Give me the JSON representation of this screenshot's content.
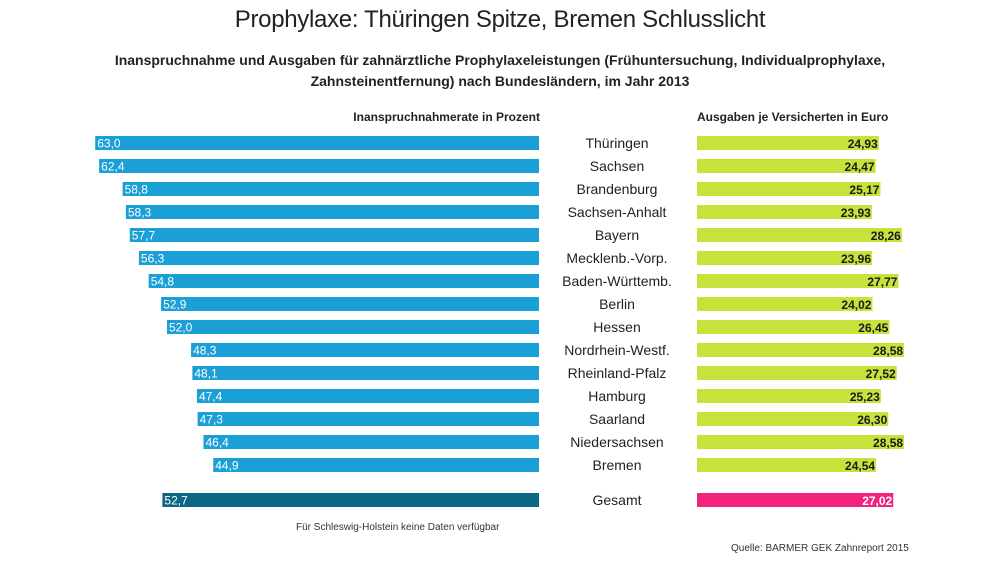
{
  "chart_data": {
    "type": "bar",
    "title": "Prophylaxe: Thüringen Spitze, Bremen Schlusslicht",
    "subtitle": "Inanspruchnahme und Ausgaben für zahnärztliche Prophylaxeleistungen (Frühuntersuchung, Individualprophylaxe, Zahnsteinentfernung) nach Bundesländern, im Jahr 2013",
    "categories": [
      "Thüringen",
      "Sachsen",
      "Brandenburg",
      "Sachsen-Anhalt",
      "Bayern",
      "Mecklenb.-Vorp.",
      "Baden-Württemb.",
      "Berlin",
      "Hessen",
      "Nordrhein-Westf.",
      "Rheinland-Pfalz",
      "Hamburg",
      "Saarland",
      "Niedersachsen",
      "Bremen"
    ],
    "series": [
      {
        "name": "Inanspruchnahmerate in Prozent",
        "values": [
          63.0,
          62.4,
          58.8,
          58.3,
          57.7,
          56.3,
          54.8,
          52.9,
          52.0,
          48.3,
          48.1,
          47.4,
          47.3,
          46.4,
          44.9
        ],
        "labels": [
          "63,0",
          "62,4",
          "58,8",
          "58,3",
          "57,7",
          "56,3",
          "54,8",
          "52,9",
          "52,0",
          "48,3",
          "48,1",
          "47,4",
          "47,3",
          "46,4",
          "44,9"
        ],
        "color": "#1a9fd6",
        "total": {
          "label": "Gesamt",
          "value": 52.7,
          "text": "52,7",
          "color": "#0c6784"
        }
      },
      {
        "name": "Ausgaben je Versicherten in Euro",
        "values": [
          24.93,
          24.47,
          25.17,
          23.93,
          28.26,
          23.96,
          27.77,
          24.02,
          26.45,
          28.58,
          27.52,
          25.23,
          26.3,
          28.58,
          24.54
        ],
        "labels": [
          "24,93",
          "24,47",
          "25,17",
          "23,93",
          "28,26",
          "23,96",
          "27,77",
          "24,02",
          "26,45",
          "28,58",
          "27,52",
          "25,23",
          "26,30",
          "28,58",
          "24,54"
        ],
        "color": "#c8e23c",
        "total": {
          "label": "Gesamt",
          "value": 27.02,
          "text": "27,02",
          "color": "#f2237c"
        }
      }
    ],
    "total_label": "Gesamt",
    "left_header": "Inanspruchnahmerate in Prozent",
    "right_header": "Ausgaben je Versicherten in Euro",
    "note": "Für Schleswig-Holstein keine Daten verfügbar",
    "source": "Quelle: BARMER GEK Zahnreport 2015",
    "legend": "none",
    "grid": false
  }
}
